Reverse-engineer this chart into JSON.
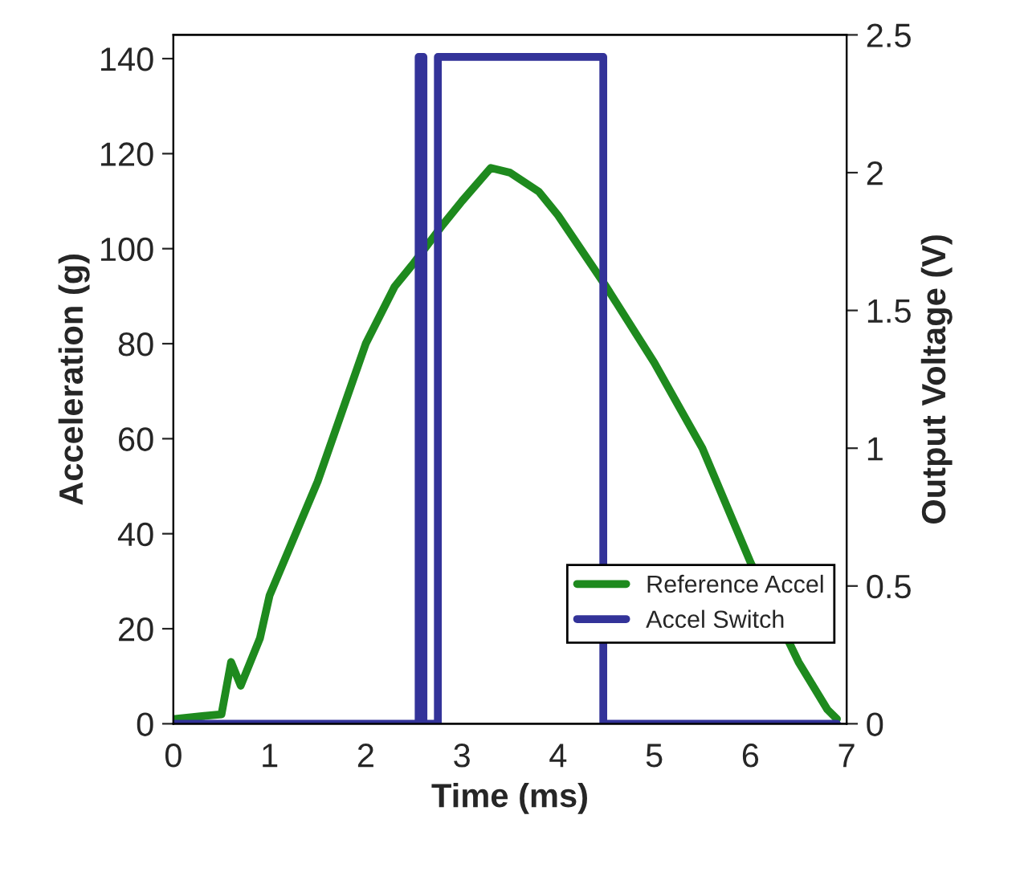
{
  "chart_data": {
    "type": "line",
    "xlabel": "Time (ms)",
    "ylabel": "Acceleration (g)",
    "y2label": "Output Voltage (V)",
    "xlim": [
      0,
      7
    ],
    "xticks": [
      0,
      1,
      2,
      3,
      4,
      5,
      6,
      7
    ],
    "ylim": [
      0,
      145
    ],
    "yticks": [
      0,
      20,
      40,
      60,
      80,
      100,
      120,
      140
    ],
    "y2lim": [
      0,
      2.5
    ],
    "y2ticks": [
      0,
      0.5,
      1,
      1.5,
      2,
      2.5
    ],
    "grid": false,
    "legend": "bottom right",
    "line_style": "solid",
    "marker": "none",
    "series": [
      {
        "name": "Reference Accel",
        "color": "#1e8a1e",
        "x": [
          0,
          0.5,
          0.6,
          0.7,
          0.9,
          1.0,
          1.5,
          2.0,
          2.3,
          2.5,
          2.8,
          3.0,
          3.3,
          3.5,
          3.8,
          4.0,
          4.5,
          5.0,
          5.5,
          6.0,
          6.5,
          6.8,
          6.9
        ],
        "values": [
          1,
          2,
          13,
          8,
          18,
          27,
          51,
          80,
          92,
          97,
          105,
          110,
          117,
          116,
          112,
          107,
          92,
          76,
          58,
          34,
          13,
          3,
          1
        ]
      },
      {
        "name": "Accel Switch",
        "color": "#333399",
        "axis": "y2",
        "x": [
          0,
          2.55,
          2.55,
          2.6,
          2.6,
          2.75,
          2.75,
          4.47,
          4.47,
          6.9
        ],
        "values": [
          0,
          0,
          2.42,
          2.42,
          0,
          0,
          2.42,
          2.42,
          0,
          0
        ]
      }
    ]
  }
}
